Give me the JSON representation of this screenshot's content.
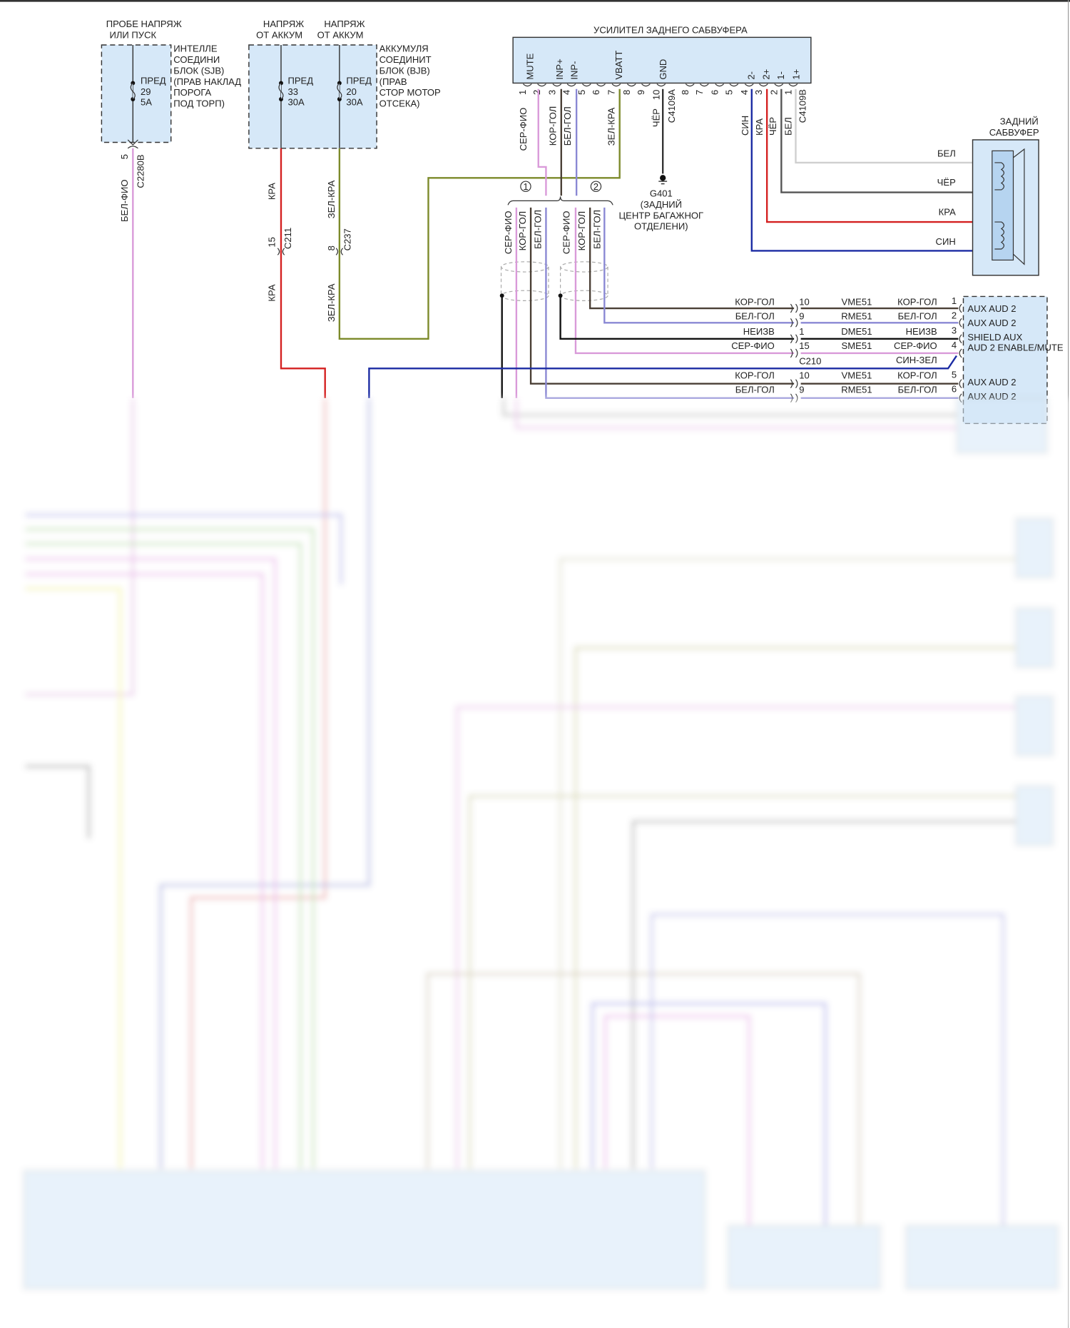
{
  "sjb": {
    "source": [
      "ПРОБЕ НАПРЯЖ",
      "ИЛИ ПУСК"
    ],
    "label": [
      "ИНТЕЛЛЕ",
      "СОЕДИНИ",
      "БЛОК (SJB)",
      "(ПРАВ НАКЛАД",
      "ПОРОГА",
      "ПОД ТОРП)"
    ],
    "fuse": [
      "ПРЕД",
      "29",
      "5А"
    ],
    "wire": {
      "color": "БЕЛ-ФИО",
      "pin": "5",
      "connector": "C2280B"
    }
  },
  "bjb": {
    "source_a": [
      "НАПРЯЖ",
      "ОТ АККУМ"
    ],
    "source_b": [
      "НАПРЯЖ",
      "ОТ АККУМ"
    ],
    "label": [
      "АККУМУЛЯ",
      "СОЕДИНИТ",
      "БЛОК (BJB)",
      "(ПРАВ",
      "СТОР МОТОР",
      "ОТСЕКА)"
    ],
    "fuse_a": [
      "ПРЕД",
      "33",
      "30А"
    ],
    "fuse_b": [
      "ПРЕД",
      "20",
      "30А"
    ],
    "wire_a": {
      "color_top": "КРА",
      "pin": "15",
      "connector": "C211",
      "color_bottom": "КРА"
    },
    "wire_b": {
      "color_top": "ЗЕЛ-КРА",
      "pin": "8",
      "connector": "C237",
      "color_bottom": "ЗЕЛ-КРА"
    }
  },
  "amp": {
    "title": "УСИЛИТЕЛ ЗАДНЕГО САБВУФЕРА",
    "pin_labels": [
      "MUTE",
      "INP+",
      "INP-",
      "VBATT",
      "GND",
      "2-",
      "2+",
      "1-",
      "1+"
    ],
    "pins_a": [
      "1",
      "2",
      "3",
      "4",
      "5",
      "6",
      "7",
      "8",
      "9",
      "10"
    ],
    "pins_b": [
      "8",
      "7",
      "6",
      "5",
      "4",
      "3",
      "2",
      "1"
    ],
    "connector_a": "C4109A",
    "connector_b": "C4109B",
    "wires_a": [
      "СЕР-ФИО",
      "КОР-ГОЛ",
      "БЕЛ-ГОЛ",
      "ЗЕЛ-КРА",
      "ЧЁР"
    ],
    "wires_b": [
      "СИН",
      "КРА",
      "ЧЁР",
      "БЕЛ"
    ]
  },
  "ground": {
    "id": "G401",
    "desc": [
      "(ЗАДНИЙ",
      "ЦЕНТР БАГАЖНОГ",
      "ОТДЕЛЕНИ)"
    ]
  },
  "twisted_pairs": {
    "markers": [
      "1",
      "2"
    ],
    "group1": [
      "СЕР-ФИО",
      "КОР-ГОЛ",
      "БЕЛ-ГОЛ"
    ],
    "group2": [
      "СЕР-ФИО",
      "КОР-ГОЛ",
      "БЕЛ-ГОЛ"
    ]
  },
  "subwoofer": {
    "title": [
      "ЗАДНИЙ",
      "САБВУФЕР"
    ],
    "wires": [
      "БЕЛ",
      "ЧЁР",
      "КРА",
      "СИН"
    ]
  },
  "c210": {
    "connector": "C210",
    "rows": [
      {
        "left": "КОР-ГОЛ",
        "pin": "10",
        "circuit": "VME51",
        "right": "КОР-ГОЛ",
        "aux_pin": "1"
      },
      {
        "left": "БЕЛ-ГОЛ",
        "pin": "9",
        "circuit": "RME51",
        "right": "БЕЛ-ГОЛ",
        "aux_pin": "2"
      },
      {
        "left": "НЕИЗВ",
        "pin": "1",
        "circuit": "DME51",
        "right": "НЕИЗВ",
        "aux_pin": "3"
      },
      {
        "left": "СЕР-ФИО",
        "pin": "15",
        "circuit": "SME51",
        "right": "СЕР-ФИО",
        "aux_pin": "4"
      },
      {
        "left": "",
        "pin": "",
        "circuit": "",
        "right": "СИН-ЗЕЛ",
        "aux_pin": ""
      },
      {
        "left": "КОР-ГОЛ",
        "pin": "10",
        "circuit": "VME51",
        "right": "КОР-ГОЛ",
        "aux_pin": "5"
      },
      {
        "left": "БЕЛ-ГОЛ",
        "pin": "9",
        "circuit": "RME51",
        "right": "БЕЛ-ГОЛ",
        "aux_pin": "6"
      }
    ]
  },
  "aux_module": {
    "labels": [
      "AUX AUD 2",
      "AUX AUD 2",
      "SHIELD AUX",
      "AUD 2 ENABLE/MUTE",
      "AUX AUD 2",
      "AUX AUD 2"
    ]
  },
  "colors": {
    "pink": "#d99ad9",
    "brown": "#4a3f35",
    "purple": "#8a88d4",
    "olive": "#7c8a2a",
    "red": "#d42020",
    "blue": "#1b2ba3",
    "black": "#111111",
    "white_wire": "#cfcfcf",
    "module_fill": "#d6e8f8"
  }
}
